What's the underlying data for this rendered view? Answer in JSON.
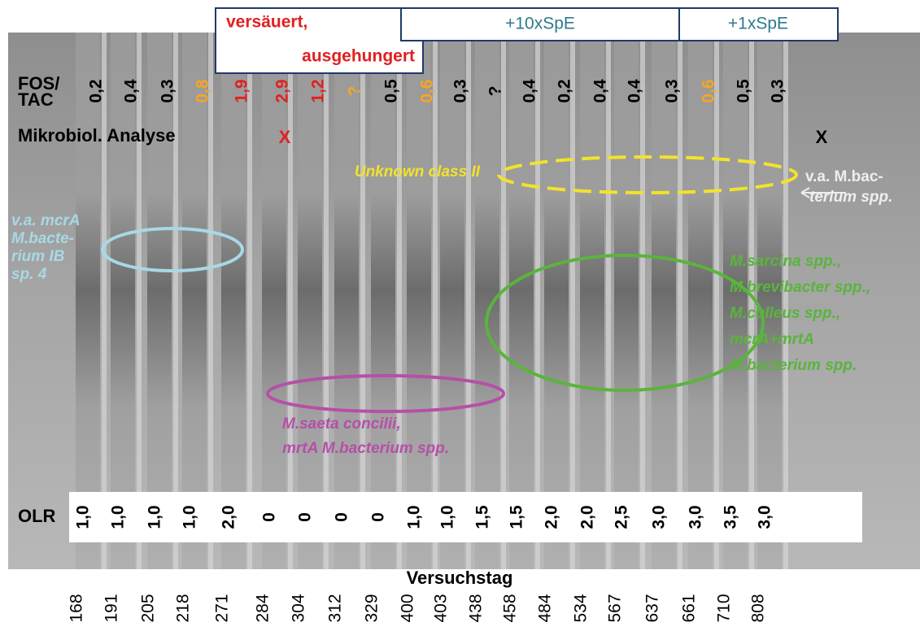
{
  "header": {
    "acidified": [
      "versäuert,",
      "ausgehungert"
    ],
    "spe10": "+10xSpE",
    "spe1": "+1xSpE"
  },
  "fos_tac": {
    "label": [
      "FOS/",
      "TAC"
    ],
    "values": [
      "0,2",
      "0,4",
      "0,3",
      "0,8",
      "1,9",
      "2,9",
      "1,2",
      "?",
      "0,5",
      "0,6",
      "0,3",
      "?",
      "0,4",
      "0,2",
      "0,4",
      "0,4",
      "0,3",
      "0,6",
      "0,5",
      "0,3"
    ],
    "colors": [
      "#000",
      "#000",
      "#000",
      "#f5a623",
      "#e02020",
      "#e02020",
      "#e02020",
      "#f5a623",
      "#000",
      "#f5a623",
      "#000",
      "#000",
      "#000",
      "#000",
      "#000",
      "#000",
      "#000",
      "#f5a623",
      "#000",
      "#000"
    ]
  },
  "analysis": {
    "label": "Mikrobiol. Analyse",
    "marks": [
      "X",
      "X"
    ]
  },
  "annotations": {
    "unknown": "Unknown class II",
    "mbacterium": [
      "v.a. M.bac-",
      "terium spp."
    ],
    "mcra": [
      "v.a. mcrA",
      "M.bacte-",
      "rium IB",
      "sp. 4"
    ],
    "green": [
      "M.sarcina spp.,",
      "M.brevibacter spp.,",
      "M.culleus spp.,",
      "mcrA+mrtA",
      "M.bacterium spp."
    ],
    "purple": [
      "M.saeta concilii,",
      "mrtA  M.bacterium spp."
    ]
  },
  "olr": {
    "label": "OLR",
    "values": [
      "1,0",
      "1,0",
      "1,0",
      "1,0",
      "2,0",
      "0",
      "0",
      "0",
      "0",
      "1,0",
      "1,0",
      "1,5",
      "1,5",
      "2,0",
      "2,0",
      "2,5",
      "3,0",
      "3,0",
      "3,5",
      "3,0"
    ]
  },
  "day": {
    "label": "Versuchstag",
    "values": [
      168,
      191,
      205,
      218,
      271,
      284,
      304,
      312,
      329,
      400,
      403,
      438,
      458,
      484,
      534,
      567,
      637,
      661,
      710,
      808
    ]
  }
}
